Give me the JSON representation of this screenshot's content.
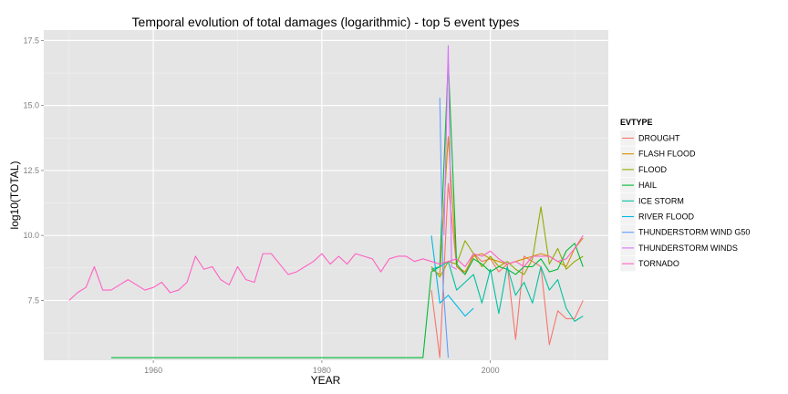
{
  "chart_data": {
    "type": "line",
    "title": "Temporal evolution of total damages (logarithmic) - top 5 event types",
    "xlabel": "YEAR",
    "ylabel": "log10(TOTAL)",
    "xlim": [
      1947.0,
      2014.0
    ],
    "ylim": [
      5.2,
      17.9
    ],
    "x_ticks": [
      1960,
      1980,
      2000
    ],
    "x_tick_labels": [
      "1960",
      "1980",
      "2000"
    ],
    "y_ticks": [
      7.5,
      10.0,
      12.5,
      15.0,
      17.5
    ],
    "y_tick_labels": [
      "7.5",
      "10.0",
      "12.5",
      "15.0",
      "17.5"
    ],
    "grid": true,
    "legend": {
      "title": "EVTYPE",
      "placement": "right"
    },
    "series": [
      {
        "name": "DROUGHT",
        "color": "#F8766D",
        "x": [
          1993,
          1994,
          1995,
          1996,
          1997,
          1998,
          1999,
          2000,
          2001,
          2002,
          2003,
          2004,
          2005,
          2006,
          2007,
          2008,
          2009,
          2010,
          2011
        ],
        "y": [
          7.9,
          5.3,
          12.0,
          8.8,
          8.5,
          9.3,
          9.0,
          9.1,
          8.6,
          8.9,
          6.0,
          9.2,
          9.0,
          8.8,
          5.8,
          7.1,
          6.8,
          6.8,
          7.5
        ]
      },
      {
        "name": "FLASH FLOOD",
        "color": "#D39200",
        "x": [
          1993,
          1994,
          1995,
          1996,
          1997,
          1998,
          1999,
          2000,
          2001,
          2002,
          2003,
          2004,
          2005,
          2006,
          2007,
          2008,
          2009,
          2010,
          2011
        ],
        "y": [
          8.7,
          8.5,
          13.8,
          8.8,
          8.6,
          9.2,
          9.3,
          9.1,
          9.0,
          8.9,
          9.0,
          9.1,
          9.2,
          9.3,
          9.2,
          9.0,
          8.8,
          9.5,
          9.9
        ]
      },
      {
        "name": "FLOOD",
        "color": "#93AA00",
        "x": [
          1993,
          1994,
          1995,
          1996,
          1997,
          1998,
          1999,
          2000,
          2001,
          2002,
          2003,
          2004,
          2005,
          2006,
          2007,
          2008,
          2009,
          2010,
          2011
        ],
        "y": [
          8.8,
          8.4,
          9.0,
          8.9,
          9.8,
          9.3,
          8.8,
          9.2,
          8.8,
          9.0,
          8.7,
          8.5,
          9.1,
          11.1,
          8.9,
          9.5,
          8.7,
          9.0,
          9.2
        ]
      },
      {
        "name": "HAIL",
        "color": "#00BA38",
        "x": [
          1955,
          1992,
          1993,
          1994,
          1995,
          1996,
          1997,
          1998,
          1999,
          2000,
          2001,
          2002,
          2003,
          2004,
          2005,
          2006,
          2007,
          2008,
          2009,
          2010,
          2011
        ],
        "y": [
          5.3,
          5.3,
          8.6,
          8.8,
          16.7,
          8.9,
          8.5,
          9.1,
          8.9,
          8.6,
          8.8,
          8.7,
          8.5,
          8.8,
          8.8,
          9.1,
          8.6,
          8.7,
          9.4,
          9.7,
          8.8
        ]
      },
      {
        "name": "ICE STORM",
        "color": "#00C19F",
        "x": [
          1993,
          1994,
          1995,
          1996,
          1997,
          1998,
          1999,
          2000,
          2001,
          2002,
          2003,
          2004,
          2005,
          2006,
          2007,
          2008,
          2009,
          2010,
          2011
        ],
        "y": [
          8.7,
          8.8,
          9.0,
          7.9,
          8.2,
          8.5,
          7.4,
          8.7,
          7.0,
          8.8,
          7.7,
          8.2,
          7.4,
          8.8,
          7.9,
          8.3,
          7.2,
          6.7,
          6.9
        ]
      },
      {
        "name": "RIVER FLOOD",
        "color": "#00B9E3",
        "x": [
          1993,
          1994,
          1995,
          1996,
          1997,
          1998
        ],
        "y": [
          10.0,
          7.4,
          7.7,
          7.3,
          6.9,
          7.2
        ]
      },
      {
        "name": "THUNDERSTORM WIND G50",
        "color": "#619CFF",
        "x": [
          1994.0,
          1994.4,
          1995.0
        ],
        "y": [
          15.3,
          8.0,
          5.3
        ]
      },
      {
        "name": "THUNDERSTORM WINDS",
        "color": "#DB72FB",
        "x": [
          1994.5,
          1995.0,
          1995.4,
          1996.0
        ],
        "y": [
          10.0,
          17.3,
          8.8,
          8.7
        ]
      },
      {
        "name": "TORNADO",
        "color": "#FF61C3",
        "x": [
          1950,
          1951,
          1952,
          1953,
          1954,
          1955,
          1956,
          1957,
          1958,
          1959,
          1960,
          1961,
          1962,
          1963,
          1964,
          1965,
          1966,
          1967,
          1968,
          1969,
          1970,
          1971,
          1972,
          1973,
          1974,
          1975,
          1976,
          1977,
          1978,
          1979,
          1980,
          1981,
          1982,
          1983,
          1984,
          1985,
          1986,
          1987,
          1988,
          1989,
          1990,
          1991,
          1992,
          1993,
          1994,
          1995,
          1996,
          1997,
          1998,
          1999,
          2000,
          2001,
          2002,
          2003,
          2004,
          2005,
          2006,
          2007,
          2008,
          2009,
          2010,
          2011
        ],
        "y": [
          7.5,
          7.8,
          8.0,
          8.8,
          7.9,
          7.9,
          8.1,
          8.3,
          8.1,
          7.9,
          8.0,
          8.2,
          7.8,
          7.9,
          8.2,
          9.2,
          8.7,
          8.8,
          8.3,
          8.1,
          8.8,
          8.3,
          8.2,
          9.3,
          9.3,
          8.9,
          8.5,
          8.6,
          8.8,
          9.0,
          9.3,
          8.9,
          9.2,
          8.9,
          9.3,
          9.2,
          9.1,
          8.6,
          9.1,
          9.2,
          9.2,
          9.0,
          9.1,
          9.0,
          8.9,
          9.0,
          9.1,
          8.8,
          9.3,
          9.2,
          9.4,
          9.1,
          8.9,
          9.0,
          8.8,
          9.2,
          9.2,
          9.2,
          9.0,
          9.1,
          9.5,
          10.0
        ]
      }
    ]
  }
}
